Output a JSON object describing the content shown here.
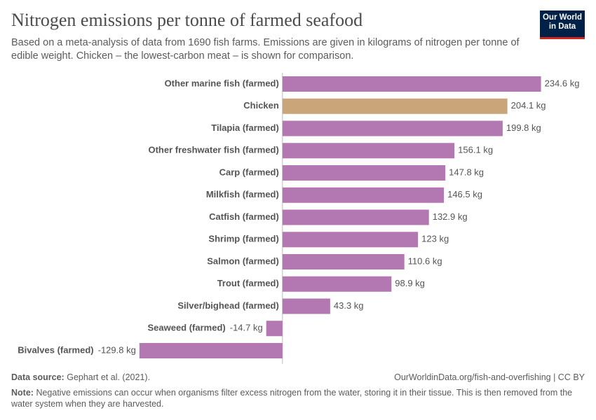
{
  "chart_data": {
    "type": "hbar",
    "title": "Nitrogen emissions per tonne of farmed seafood",
    "subtitle": "Based on a meta-analysis of data from 1690 fish farms. Emissions are given in kilograms of nitrogen per tonne of edible weight. Chicken – the lowest-carbon meat – is shown for comparison.",
    "logo": "Our World in Data",
    "categories": [
      "Other marine fish (farmed)",
      "Chicken",
      "Tilapia (farmed)",
      "Other freshwater fish (farmed)",
      "Carp (farmed)",
      "Milkfish (farmed)",
      "Catfish (farmed)",
      "Shrimp (farmed)",
      "Salmon (farmed)",
      "Trout (farmed)",
      "Silver/bighead (farmed)",
      "Seaweed (farmed)",
      "Bivalves (farmed)"
    ],
    "values": [
      234.6,
      204.1,
      199.8,
      156.1,
      147.8,
      146.5,
      132.9,
      123,
      110.6,
      98.9,
      43.3,
      -14.7,
      -129.8
    ],
    "value_labels": [
      "234.6 kg",
      "204.1 kg",
      "199.8 kg",
      "156.1 kg",
      "147.8 kg",
      "146.5 kg",
      "132.9 kg",
      "123 kg",
      "110.6 kg",
      "98.9 kg",
      "43.3 kg",
      "-14.7 kg",
      "-129.8 kg"
    ],
    "colors": [
      "#b377b1",
      "#c9a579",
      "#b377b1",
      "#b377b1",
      "#b377b1",
      "#b377b1",
      "#b377b1",
      "#b377b1",
      "#b377b1",
      "#b377b1",
      "#b377b1",
      "#b377b1",
      "#b377b1"
    ],
    "xlim": [
      -130,
      235
    ],
    "source_label": "Data source:",
    "source": "Gephart et al. (2021).",
    "url_license": "OurWorldinData.org/fish-and-overfishing | CC BY",
    "note_label": "Note:",
    "note": "Negative emissions can occur when organisms filter excess nitrogen from the water, storing it in their tissue. This is then removed from the water system when they are harvested."
  }
}
